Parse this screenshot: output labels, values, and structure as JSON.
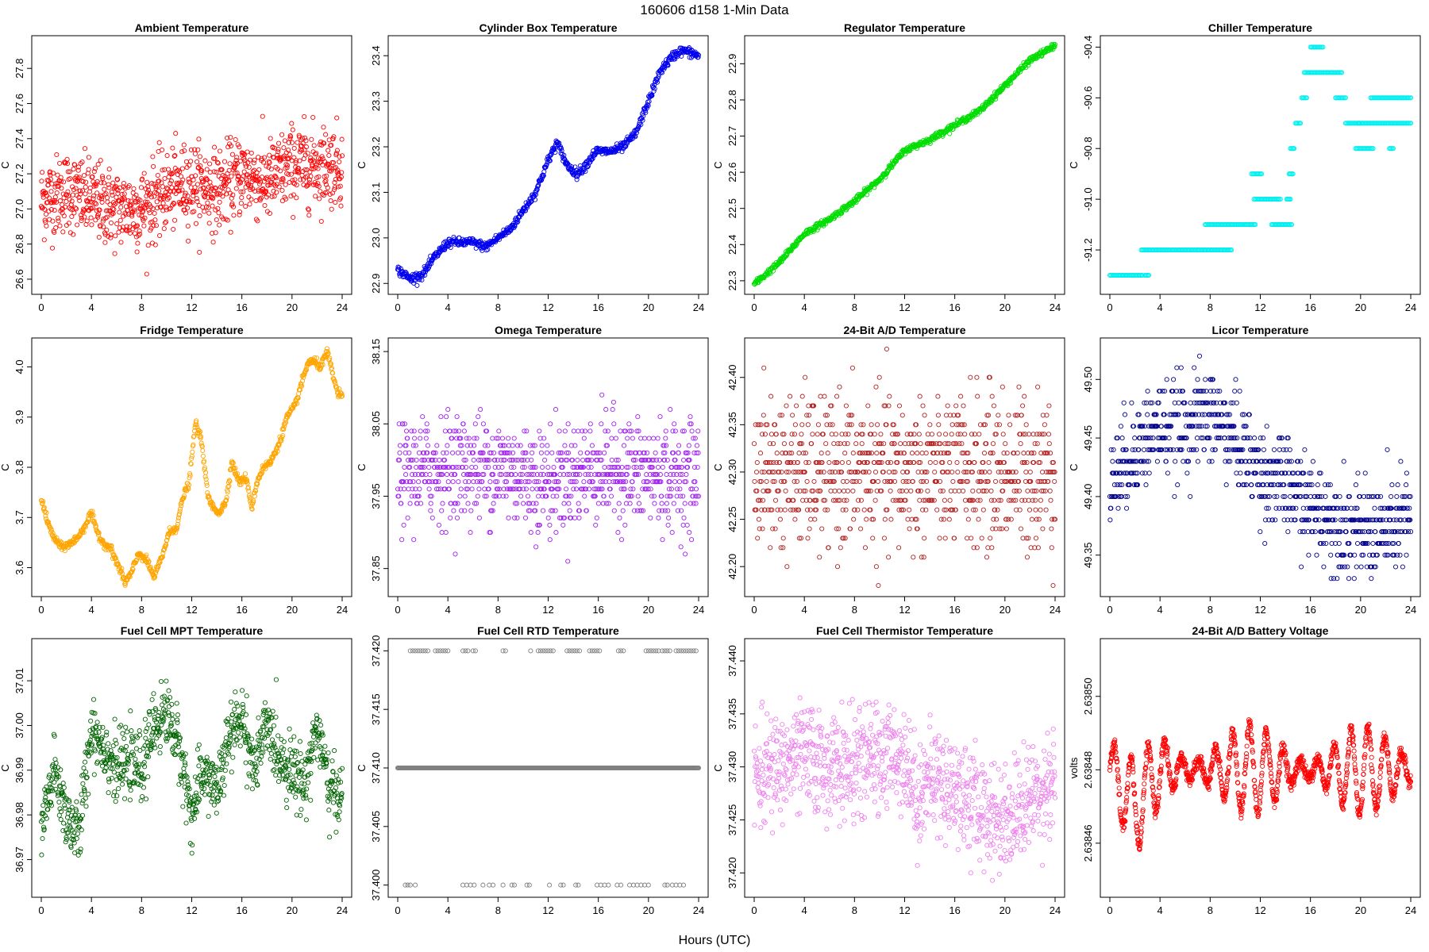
{
  "page": {
    "title": "160606    d158    1-Min Data",
    "xlabel": "Hours (UTC)"
  },
  "chart_data": [
    {
      "type": "scatter",
      "title": "Ambient Temperature",
      "ylabel": "C",
      "color": "#ff0000",
      "xlim": [
        0,
        24
      ],
      "ylim": [
        26.55,
        27.95
      ],
      "xticks": [
        0,
        4,
        8,
        12,
        16,
        20,
        24
      ],
      "yticks": [
        26.6,
        26.8,
        27.0,
        27.2,
        27.4,
        27.6,
        27.8
      ],
      "ytick_labels": [
        "26.6",
        "26.8",
        "27.0",
        "27.2",
        "27.4",
        "27.6",
        "27.8"
      ],
      "mode": "noisy",
      "x": [
        0,
        2,
        4,
        6,
        8,
        10,
        12,
        14,
        16,
        18,
        20,
        22,
        24
      ],
      "y": [
        27.05,
        27.1,
        27.05,
        27.0,
        27.0,
        27.1,
        27.15,
        27.1,
        27.2,
        27.15,
        27.25,
        27.25,
        27.25
      ],
      "spread": 0.25
    },
    {
      "type": "scatter",
      "title": "Cylinder Box Temperature",
      "ylabel": "C",
      "color": "#0000ee",
      "xlim": [
        0,
        24
      ],
      "ylim": [
        22.89,
        23.43
      ],
      "xticks": [
        0,
        4,
        8,
        12,
        16,
        20,
        24
      ],
      "yticks": [
        22.9,
        23.0,
        23.1,
        23.2,
        23.3,
        23.4
      ],
      "ytick_labels": [
        "22.9",
        "23.0",
        "23.1",
        "23.2",
        "23.3",
        "23.4"
      ],
      "mode": "smooth",
      "x": [
        0,
        1,
        2,
        3,
        4,
        5,
        6,
        7,
        8,
        9,
        10,
        11,
        12,
        12.7,
        13.5,
        14.3,
        15,
        15.8,
        17,
        18,
        19,
        20,
        21,
        22,
        22.5,
        23,
        24
      ],
      "y": [
        22.93,
        22.91,
        22.92,
        22.96,
        22.99,
        22.99,
        22.99,
        22.98,
        23.0,
        23.02,
        23.06,
        23.1,
        23.17,
        23.21,
        23.16,
        23.14,
        23.16,
        23.19,
        23.19,
        23.2,
        23.23,
        23.3,
        23.37,
        23.4,
        23.41,
        23.41,
        23.4
      ],
      "spread": 0.005
    },
    {
      "type": "scatter",
      "title": "Regulator Temperature",
      "ylabel": "C",
      "color": "#00dd00",
      "xlim": [
        0,
        24
      ],
      "ylim": [
        22.28,
        22.96
      ],
      "xticks": [
        0,
        4,
        8,
        12,
        16,
        20,
        24
      ],
      "yticks": [
        22.3,
        22.4,
        22.5,
        22.6,
        22.7,
        22.8,
        22.9
      ],
      "ytick_labels": [
        "22.3",
        "22.4",
        "22.5",
        "22.6",
        "22.7",
        "22.8",
        "22.9"
      ],
      "mode": "smooth",
      "x": [
        0,
        2,
        4,
        6,
        8,
        10,
        12,
        14,
        16,
        18,
        20,
        22,
        24
      ],
      "y": [
        22.29,
        22.35,
        22.43,
        22.47,
        22.52,
        22.58,
        22.66,
        22.69,
        22.73,
        22.77,
        22.84,
        22.91,
        22.95
      ],
      "spread": 0.004
    },
    {
      "type": "scatter",
      "title": "Chiller Temperature",
      "ylabel": "C",
      "color": "#00eeee",
      "xlim": [
        0,
        24
      ],
      "ylim": [
        -91.35,
        -90.38
      ],
      "xticks": [
        0,
        4,
        8,
        12,
        16,
        20,
        24
      ],
      "yticks": [
        -91.2,
        -91.0,
        -90.8,
        -90.6,
        -90.4
      ],
      "ytick_labels": [
        "-91.2",
        "-91.0",
        "-90.8",
        "-90.6",
        "-90.4"
      ],
      "mode": "steps",
      "segments": [
        [
          0,
          2.6,
          -91.3
        ],
        [
          2.8,
          3.1,
          -91.3
        ],
        [
          2.5,
          7.6,
          -91.2
        ],
        [
          7.6,
          9.7,
          -91.2
        ],
        [
          7.6,
          10.6,
          -91.1
        ],
        [
          10.7,
          11.6,
          -91.1
        ],
        [
          11.3,
          12.1,
          -90.9
        ],
        [
          11.5,
          13.6,
          -91.0
        ],
        [
          12.9,
          14.5,
          -91.1
        ],
        [
          14.1,
          14.4,
          -91.0
        ],
        [
          14.3,
          14.6,
          -90.9
        ],
        [
          14.4,
          14.7,
          -90.8
        ],
        [
          14.8,
          15.2,
          -90.7
        ],
        [
          15.3,
          15.7,
          -90.6
        ],
        [
          15.5,
          18.5,
          -90.5
        ],
        [
          16.0,
          17.0,
          -90.4
        ],
        [
          18.0,
          18.8,
          -90.6
        ],
        [
          18.8,
          19.9,
          -90.7
        ],
        [
          19.6,
          21.0,
          -90.8
        ],
        [
          19.8,
          24.0,
          -90.7
        ],
        [
          20.8,
          24.0,
          -90.6
        ],
        [
          22.3,
          22.6,
          -90.8
        ]
      ]
    },
    {
      "type": "scatter",
      "title": "Fridge Temperature",
      "ylabel": "C",
      "color": "#ffa500",
      "xlim": [
        0,
        24
      ],
      "ylim": [
        3.555,
        4.045
      ],
      "xticks": [
        0,
        4,
        8,
        12,
        16,
        20,
        24
      ],
      "yticks": [
        3.6,
        3.7,
        3.8,
        3.9,
        4.0
      ],
      "ytick_labels": [
        "3.6",
        "3.7",
        "3.8",
        "3.9",
        "4.0"
      ],
      "mode": "smooth",
      "x": [
        0,
        0.5,
        1,
        1.6,
        2.5,
        3.2,
        4,
        4.3,
        4.9,
        5.5,
        6.2,
        6.7,
        7.2,
        7.8,
        8.5,
        9,
        9.6,
        10.2,
        10.8,
        11.3,
        11.8,
        12.3,
        12.8,
        13.3,
        13.7,
        14.2,
        14.7,
        15.2,
        15.8,
        16.3,
        16.8,
        17.2,
        17.7,
        18.3,
        19,
        19.6,
        20.2,
        20.8,
        21.3,
        21.8,
        22.3,
        22.8,
        23.1,
        23.6,
        24
      ],
      "y": [
        3.74,
        3.69,
        3.66,
        3.64,
        3.65,
        3.67,
        3.71,
        3.68,
        3.65,
        3.64,
        3.6,
        3.57,
        3.59,
        3.63,
        3.61,
        3.58,
        3.62,
        3.67,
        3.68,
        3.74,
        3.77,
        3.89,
        3.85,
        3.74,
        3.72,
        3.71,
        3.73,
        3.81,
        3.77,
        3.78,
        3.72,
        3.77,
        3.8,
        3.81,
        3.85,
        3.9,
        3.92,
        3.97,
        4.01,
        4.01,
        4.0,
        4.03,
        4.0,
        3.95,
        3.94
      ],
      "spread": 0.004
    },
    {
      "type": "scatter",
      "title": "Omega Temperature",
      "ylabel": "C",
      "color": "#a020f0",
      "xlim": [
        0,
        24
      ],
      "ylim": [
        37.82,
        38.16
      ],
      "xticks": [
        0,
        4,
        8,
        12,
        16,
        20,
        24
      ],
      "yticks": [
        37.85,
        37.95,
        38.05,
        38.15
      ],
      "ytick_labels": [
        "37.85",
        "37.95",
        "38.05",
        "38.15"
      ],
      "mode": "quantized",
      "x": [
        0,
        4,
        8,
        12,
        16,
        20,
        24
      ],
      "y": [
        37.98,
        37.99,
        37.99,
        37.97,
        37.99,
        37.98,
        37.98
      ],
      "spread": 0.09,
      "step": 0.01
    },
    {
      "type": "scatter",
      "title": "24-Bit A/D Temperature",
      "ylabel": "C",
      "color": "#b22222",
      "xlim": [
        0,
        24
      ],
      "ylim": [
        42.175,
        42.435
      ],
      "xticks": [
        0,
        4,
        8,
        12,
        16,
        20,
        24
      ],
      "yticks": [
        42.2,
        42.25,
        42.3,
        42.35,
        42.4
      ],
      "ytick_labels": [
        "42.20",
        "42.25",
        "42.30",
        "42.35",
        "42.40"
      ],
      "mode": "quantized",
      "x": [
        0,
        8,
        16,
        24
      ],
      "y": [
        42.3,
        42.3,
        42.3,
        42.3
      ],
      "spread": 0.1,
      "step": 0.01
    },
    {
      "type": "scatter",
      "title": "Licor Temperature",
      "ylabel": "C",
      "color": "#00008b",
      "xlim": [
        0,
        24
      ],
      "ylim": [
        49.32,
        49.53
      ],
      "xticks": [
        0,
        4,
        8,
        12,
        16,
        20,
        24
      ],
      "yticks": [
        49.35,
        49.4,
        49.45,
        49.5
      ],
      "ytick_labels": [
        "49.35",
        "49.40",
        "49.45",
        "49.50"
      ],
      "mode": "quantized",
      "x": [
        0,
        2,
        4,
        6,
        8,
        10,
        12,
        14,
        16,
        18,
        20,
        22,
        24
      ],
      "y": [
        49.41,
        49.44,
        49.46,
        49.46,
        49.47,
        49.45,
        49.42,
        49.41,
        49.39,
        49.38,
        49.37,
        49.37,
        49.38
      ],
      "spread": 0.05,
      "step": 0.01
    },
    {
      "type": "scatter",
      "title": "Fuel Cell MPT Temperature",
      "ylabel": "C",
      "color": "#006400",
      "xlim": [
        0,
        24
      ],
      "ylim": [
        36.963,
        37.018
      ],
      "xticks": [
        0,
        4,
        8,
        12,
        16,
        20,
        24
      ],
      "yticks": [
        36.97,
        36.98,
        36.99,
        37.0,
        37.01
      ],
      "ytick_labels": [
        "36.97",
        "36.98",
        "36.99",
        "37.00",
        "37.01"
      ],
      "mode": "noisy",
      "x": [
        0,
        1,
        2,
        3,
        4,
        5,
        6,
        7,
        8,
        9,
        10,
        11,
        12,
        13,
        14,
        15,
        16,
        17,
        18,
        19,
        20,
        21,
        22,
        23,
        24
      ],
      "y": [
        36.976,
        36.99,
        36.98,
        36.975,
        37.0,
        36.995,
        36.99,
        36.992,
        36.99,
        37.0,
        37.003,
        36.995,
        36.98,
        36.99,
        36.985,
        36.997,
        37.002,
        36.99,
        37.0,
        36.993,
        36.99,
        36.987,
        37.0,
        36.985,
        36.985
      ],
      "spread": 0.008
    },
    {
      "type": "scatter",
      "title": "Fuel Cell RTD Temperature",
      "ylabel": "C",
      "color": "#808080",
      "xlim": [
        0,
        24
      ],
      "ylim": [
        37.3995,
        37.4205
      ],
      "xticks": [
        0,
        4,
        8,
        12,
        16,
        20,
        24
      ],
      "yticks": [
        37.4,
        37.405,
        37.41,
        37.415,
        37.42
      ],
      "ytick_labels": [
        "37.400",
        "37.405",
        "37.410",
        "37.415",
        "37.420"
      ],
      "mode": "levels",
      "levels": [
        37.41
      ],
      "upper": 37.42,
      "lower": 37.4,
      "upper_x": [
        1.0,
        1.2,
        1.4,
        1.6,
        1.8,
        2.0,
        2.2,
        2.4,
        3.0,
        3.2,
        3.4,
        3.6,
        3.8,
        4.0,
        5.2,
        5.4,
        5.6,
        6.0,
        6.2,
        8.4,
        8.6,
        10.6,
        11.2,
        11.4,
        11.6,
        11.8,
        12.0,
        12.2,
        12.4,
        13.5,
        13.7,
        13.9,
        14.1,
        14.3,
        14.5,
        15.3,
        15.5,
        15.7,
        15.9,
        16.1,
        17.6,
        17.8,
        18.0,
        19.8,
        20.0,
        20.2,
        20.4,
        20.6,
        20.8,
        21.1,
        21.3,
        21.5,
        21.7,
        22.2,
        22.4,
        22.6,
        22.8,
        23.0,
        23.2,
        23.4,
        23.6,
        23.8
      ],
      "lower_x": [
        0.6,
        0.8,
        1.0,
        1.4,
        5.2,
        5.5,
        5.8,
        6.1,
        6.8,
        7.3,
        7.6,
        8.4,
        9.1,
        9.3,
        10.3,
        10.5,
        12.1,
        13.0,
        13.2,
        14.2,
        14.4,
        15.9,
        16.2,
        16.5,
        16.8,
        17.5,
        17.8,
        18.5,
        18.8,
        19.1,
        19.4,
        19.7,
        20.0,
        21.3,
        21.5,
        21.9,
        22.2,
        22.5,
        22.8
      ]
    },
    {
      "type": "scatter",
      "title": "Fuel Cell Thermistor Temperature",
      "ylabel": "C",
      "color": "#ee82ee",
      "xlim": [
        0,
        24
      ],
      "ylim": [
        37.4183,
        37.4415
      ],
      "xticks": [
        0,
        4,
        8,
        12,
        16,
        20,
        24
      ],
      "yticks": [
        37.42,
        37.425,
        37.43,
        37.435,
        37.44
      ],
      "ytick_labels": [
        "37.420",
        "37.425",
        "37.430",
        "37.435",
        "37.440"
      ],
      "mode": "noisy",
      "x": [
        0,
        2,
        4,
        6,
        8,
        10,
        12,
        13,
        14,
        16,
        18,
        20,
        22,
        24
      ],
      "y": [
        37.429,
        37.43,
        37.431,
        37.43,
        37.43,
        37.431,
        37.431,
        37.427,
        37.429,
        37.428,
        37.426,
        37.425,
        37.427,
        37.429
      ],
      "spread": 0.0055
    },
    {
      "type": "scatter",
      "title": "24-Bit A/D Battery Voltage",
      "ylabel": "volts",
      "color": "#ff0000",
      "xlim": [
        0,
        24
      ],
      "ylim": [
        2.638447,
        2.638514
      ],
      "xticks": [
        0,
        4,
        8,
        12,
        16,
        20,
        24
      ],
      "yticks": [
        2.63846,
        2.63848,
        2.6385
      ],
      "ytick_labels": [
        "2.63846",
        "2.63848",
        "2.63850"
      ],
      "mode": "oscillating",
      "x": [
        0,
        2,
        4,
        6,
        8,
        10,
        12,
        14,
        16,
        18,
        20,
        22,
        24
      ],
      "y": [
        2.63848,
        2.63847,
        2.63848,
        2.63848,
        2.63848,
        2.63848,
        2.63848,
        2.63848,
        2.63848,
        2.63848,
        2.63848,
        2.63848,
        2.63848
      ],
      "amplitude": 1.2e-05
    }
  ]
}
